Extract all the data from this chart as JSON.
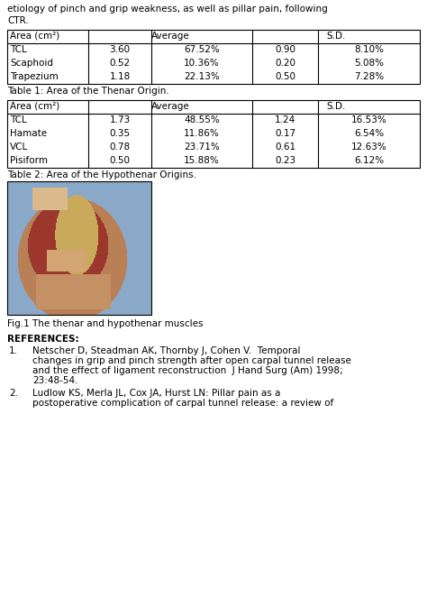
{
  "header_text_line1": "etiology of pinch and grip weakness, as well as pillar pain, following",
  "header_text_line2": "CTR.",
  "table1_caption": "Table 1: Area of the Thenar Origin.",
  "table1_rows": [
    [
      "TCL",
      "3.60",
      "67.52%",
      "0.90",
      "8.10%"
    ],
    [
      "Scaphoid",
      "0.52",
      "10.36%",
      "0.20",
      "5.08%"
    ],
    [
      "Trapezium",
      "1.18",
      "22.13%",
      "0.50",
      "7.28%"
    ]
  ],
  "table2_caption": "Table 2: Area of the Hypothenar Origins.",
  "table2_rows": [
    [
      "TCL",
      "1.73",
      "48.55%",
      "1.24",
      "16.53%"
    ],
    [
      "Hamate",
      "0.35",
      "11.86%",
      "0.17",
      "6.54%"
    ],
    [
      "VCL",
      "0.78",
      "23.71%",
      "0.61",
      "12.63%"
    ],
    [
      "Pisiform",
      "0.50",
      "15.88%",
      "0.23",
      "6.12%"
    ]
  ],
  "fig_caption": "Fig.1 The thenar and hypothenar muscles",
  "references_title": "REFERENCES:",
  "ref1_num": "1.",
  "ref1_lines": [
    "Netscher D, Steadman AK, Thornby J, Cohen V.  Temporal",
    "changes in grip and pinch strength after open carpal tunnel release",
    "and the effect of ligament reconstruction  J Hand Surg (Am) 1998;",
    "23:48-54."
  ],
  "ref2_num": "2.",
  "ref2_lines": [
    "Ludlow KS, Merla JL, Cox JA, Hurst LN: Pillar pain as a",
    "postoperative complication of carpal tunnel release: a review of"
  ],
  "bg_color": "#ffffff",
  "text_color": "#000000",
  "font_size": 7.5,
  "img_bg_color": "#8ab0c8",
  "img_tissue_color": "#c8804a",
  "img_red_color": "#963228",
  "img_yellow_color": "#d4b86e",
  "img_skin_color": "#c8966e"
}
